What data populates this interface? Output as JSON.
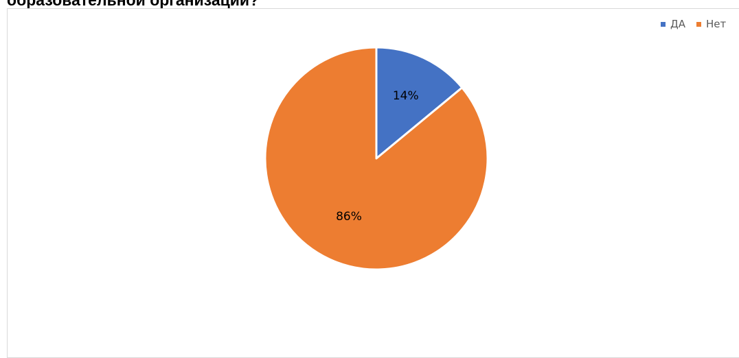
{
  "document": {
    "heading": "образовательной организации?"
  },
  "chart_data": {
    "type": "pie",
    "title": "",
    "categories": [
      "ДА",
      "Нет"
    ],
    "values": [
      14,
      86
    ],
    "labels": [
      "14%",
      "86%"
    ],
    "colors": [
      "#4472c4",
      "#ed7d31"
    ],
    "legend_position": "top-right",
    "start_angle_deg": 0,
    "direction": "clockwise"
  }
}
